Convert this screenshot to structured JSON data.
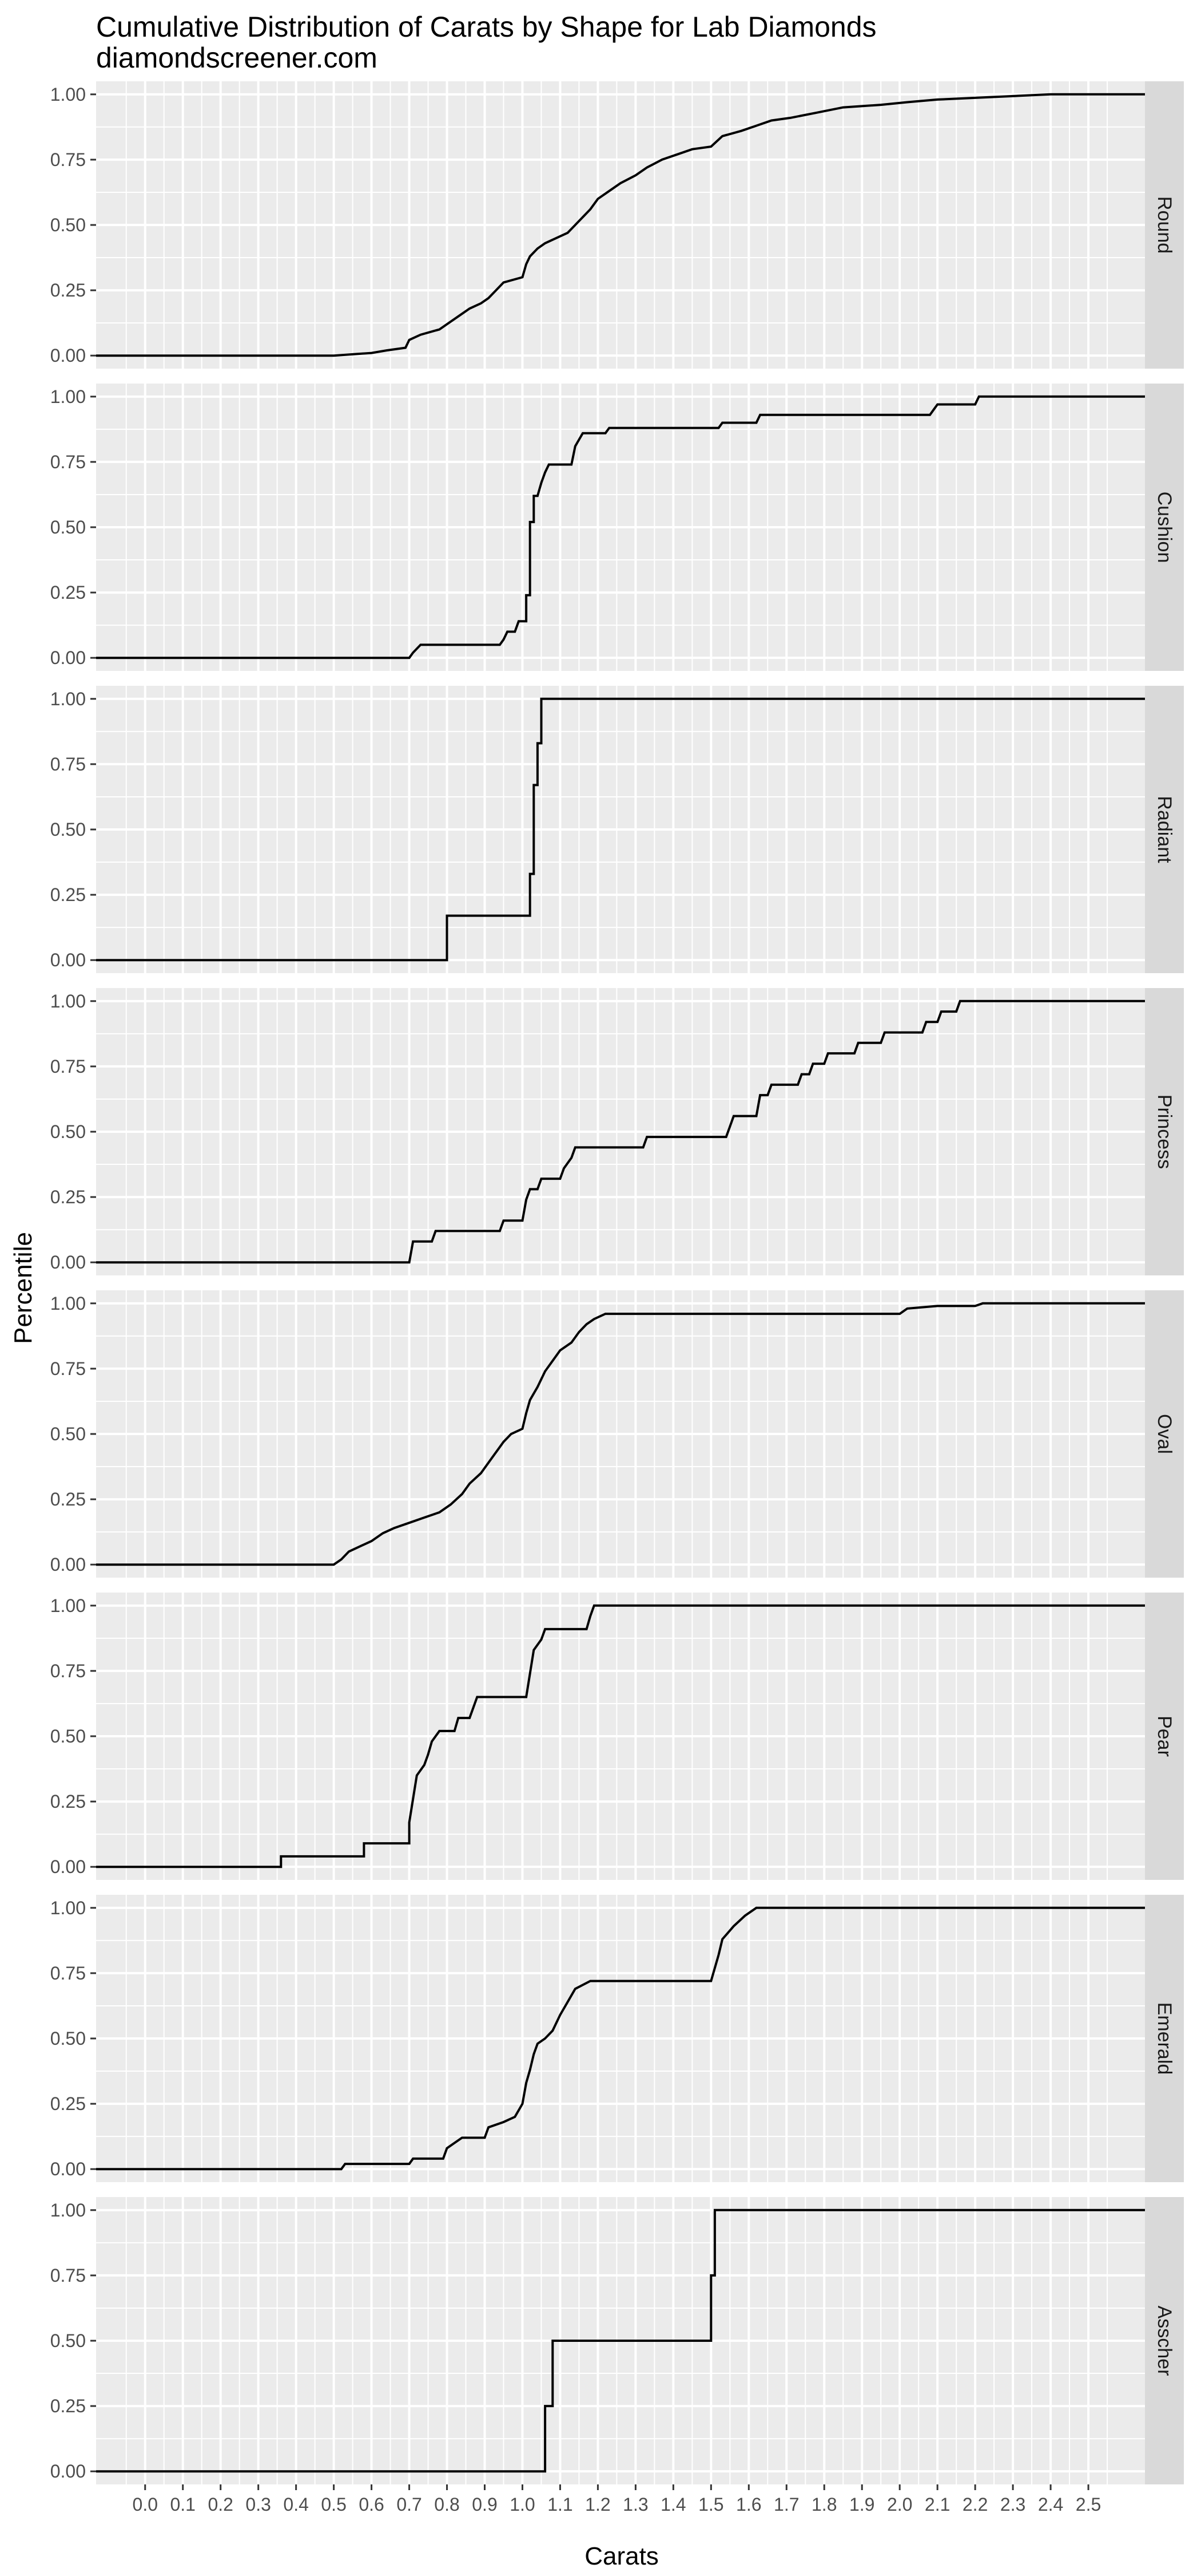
{
  "chart_data": {
    "type": "line",
    "title": "Cumulative Distribution of Carats by Shape for Lab Diamonds",
    "subtitle": "diamondscreener.com",
    "xlabel": "Carats",
    "ylabel": "Percentile",
    "xlim": [
      -0.13,
      2.65
    ],
    "ylim": [
      -0.05,
      1.05
    ],
    "x_ticks": [
      0.0,
      0.1,
      0.2,
      0.3,
      0.4,
      0.5,
      0.6,
      0.7,
      0.8,
      0.9,
      1.0,
      1.1,
      1.2,
      1.3,
      1.4,
      1.5,
      1.6,
      1.7,
      1.8,
      1.9,
      2.0,
      2.1,
      2.2,
      2.3,
      2.4,
      2.5
    ],
    "x_tick_labels": [
      "0.0",
      "0.1",
      "0.2",
      "0.3",
      "0.4",
      "0.5",
      "0.6",
      "0.7",
      "0.8",
      "0.9",
      "1.0",
      "1.1",
      "1.2",
      "1.3",
      "1.4",
      "1.5",
      "1.6",
      "1.7",
      "1.8",
      "1.9",
      "2.0",
      "2.1",
      "2.2",
      "2.3",
      "2.4",
      "2.5"
    ],
    "y_ticks": [
      0.0,
      0.25,
      0.5,
      0.75,
      1.0
    ],
    "y_tick_labels": [
      "0.00",
      "0.25",
      "0.50",
      "0.75",
      "1.00"
    ],
    "grid": true,
    "facet": "rows",
    "series": [
      {
        "name": "Round",
        "points": [
          [
            -0.13,
            0
          ],
          [
            0.5,
            0
          ],
          [
            0.55,
            0.005
          ],
          [
            0.6,
            0.01
          ],
          [
            0.64,
            0.02
          ],
          [
            0.69,
            0.03
          ],
          [
            0.7,
            0.06
          ],
          [
            0.73,
            0.08
          ],
          [
            0.78,
            0.1
          ],
          [
            0.8,
            0.12
          ],
          [
            0.83,
            0.15
          ],
          [
            0.86,
            0.18
          ],
          [
            0.89,
            0.2
          ],
          [
            0.91,
            0.22
          ],
          [
            0.93,
            0.25
          ],
          [
            0.95,
            0.28
          ],
          [
            1.0,
            0.3
          ],
          [
            1.01,
            0.35
          ],
          [
            1.02,
            0.38
          ],
          [
            1.04,
            0.41
          ],
          [
            1.06,
            0.43
          ],
          [
            1.09,
            0.45
          ],
          [
            1.12,
            0.47
          ],
          [
            1.14,
            0.5
          ],
          [
            1.16,
            0.53
          ],
          [
            1.18,
            0.56
          ],
          [
            1.2,
            0.6
          ],
          [
            1.23,
            0.63
          ],
          [
            1.26,
            0.66
          ],
          [
            1.3,
            0.69
          ],
          [
            1.33,
            0.72
          ],
          [
            1.37,
            0.75
          ],
          [
            1.41,
            0.77
          ],
          [
            1.45,
            0.79
          ],
          [
            1.5,
            0.8
          ],
          [
            1.53,
            0.84
          ],
          [
            1.58,
            0.86
          ],
          [
            1.62,
            0.88
          ],
          [
            1.66,
            0.9
          ],
          [
            1.71,
            0.91
          ],
          [
            1.78,
            0.93
          ],
          [
            1.85,
            0.95
          ],
          [
            1.95,
            0.96
          ],
          [
            2.02,
            0.97
          ],
          [
            2.1,
            0.98
          ],
          [
            2.25,
            0.99
          ],
          [
            2.4,
            1.0
          ],
          [
            2.65,
            1.0
          ]
        ]
      },
      {
        "name": "Cushion",
        "points": [
          [
            -0.13,
            0
          ],
          [
            0.7,
            0
          ],
          [
            0.71,
            0.02
          ],
          [
            0.73,
            0.05
          ],
          [
            0.94,
            0.05
          ],
          [
            0.95,
            0.07
          ],
          [
            0.96,
            0.1
          ],
          [
            0.98,
            0.1
          ],
          [
            0.99,
            0.14
          ],
          [
            1.01,
            0.14
          ],
          [
            1.01,
            0.24
          ],
          [
            1.02,
            0.24
          ],
          [
            1.02,
            0.52
          ],
          [
            1.03,
            0.52
          ],
          [
            1.03,
            0.62
          ],
          [
            1.04,
            0.62
          ],
          [
            1.05,
            0.67
          ],
          [
            1.06,
            0.71
          ],
          [
            1.07,
            0.74
          ],
          [
            1.13,
            0.74
          ],
          [
            1.14,
            0.81
          ],
          [
            1.16,
            0.86
          ],
          [
            1.22,
            0.86
          ],
          [
            1.23,
            0.88
          ],
          [
            1.52,
            0.88
          ],
          [
            1.53,
            0.9
          ],
          [
            1.62,
            0.9
          ],
          [
            1.63,
            0.93
          ],
          [
            2.08,
            0.93
          ],
          [
            2.09,
            0.95
          ],
          [
            2.1,
            0.97
          ],
          [
            2.2,
            0.97
          ],
          [
            2.21,
            1.0
          ],
          [
            2.65,
            1.0
          ]
        ]
      },
      {
        "name": "Radiant",
        "points": [
          [
            -0.13,
            0
          ],
          [
            0.8,
            0
          ],
          [
            0.8,
            0.17
          ],
          [
            1.02,
            0.17
          ],
          [
            1.02,
            0.33
          ],
          [
            1.03,
            0.33
          ],
          [
            1.03,
            0.67
          ],
          [
            1.04,
            0.67
          ],
          [
            1.04,
            0.83
          ],
          [
            1.05,
            0.83
          ],
          [
            1.05,
            1.0
          ],
          [
            2.65,
            1.0
          ]
        ]
      },
      {
        "name": "Princess",
        "points": [
          [
            -0.13,
            0
          ],
          [
            0.7,
            0
          ],
          [
            0.71,
            0.08
          ],
          [
            0.76,
            0.08
          ],
          [
            0.77,
            0.12
          ],
          [
            0.94,
            0.12
          ],
          [
            0.95,
            0.16
          ],
          [
            1.0,
            0.16
          ],
          [
            1.01,
            0.24
          ],
          [
            1.02,
            0.28
          ],
          [
            1.04,
            0.28
          ],
          [
            1.05,
            0.32
          ],
          [
            1.1,
            0.32
          ],
          [
            1.11,
            0.36
          ],
          [
            1.13,
            0.4
          ],
          [
            1.14,
            0.44
          ],
          [
            1.32,
            0.44
          ],
          [
            1.33,
            0.48
          ],
          [
            1.54,
            0.48
          ],
          [
            1.55,
            0.52
          ],
          [
            1.56,
            0.56
          ],
          [
            1.62,
            0.56
          ],
          [
            1.63,
            0.64
          ],
          [
            1.65,
            0.64
          ],
          [
            1.66,
            0.68
          ],
          [
            1.73,
            0.68
          ],
          [
            1.74,
            0.72
          ],
          [
            1.76,
            0.72
          ],
          [
            1.77,
            0.76
          ],
          [
            1.8,
            0.76
          ],
          [
            1.81,
            0.8
          ],
          [
            1.88,
            0.8
          ],
          [
            1.89,
            0.84
          ],
          [
            1.95,
            0.84
          ],
          [
            1.96,
            0.88
          ],
          [
            2.06,
            0.88
          ],
          [
            2.07,
            0.92
          ],
          [
            2.1,
            0.92
          ],
          [
            2.11,
            0.96
          ],
          [
            2.15,
            0.96
          ],
          [
            2.16,
            1.0
          ],
          [
            2.65,
            1.0
          ]
        ]
      },
      {
        "name": "Oval",
        "points": [
          [
            -0.13,
            0
          ],
          [
            0.5,
            0
          ],
          [
            0.52,
            0.02
          ],
          [
            0.54,
            0.05
          ],
          [
            0.57,
            0.07
          ],
          [
            0.6,
            0.09
          ],
          [
            0.63,
            0.12
          ],
          [
            0.66,
            0.14
          ],
          [
            0.7,
            0.16
          ],
          [
            0.74,
            0.18
          ],
          [
            0.78,
            0.2
          ],
          [
            0.81,
            0.23
          ],
          [
            0.84,
            0.27
          ],
          [
            0.86,
            0.31
          ],
          [
            0.89,
            0.35
          ],
          [
            0.91,
            0.39
          ],
          [
            0.93,
            0.43
          ],
          [
            0.95,
            0.47
          ],
          [
            0.97,
            0.5
          ],
          [
            1.0,
            0.52
          ],
          [
            1.01,
            0.58
          ],
          [
            1.02,
            0.63
          ],
          [
            1.04,
            0.68
          ],
          [
            1.06,
            0.74
          ],
          [
            1.08,
            0.78
          ],
          [
            1.1,
            0.82
          ],
          [
            1.13,
            0.85
          ],
          [
            1.15,
            0.89
          ],
          [
            1.17,
            0.92
          ],
          [
            1.19,
            0.94
          ],
          [
            1.22,
            0.96
          ],
          [
            2.0,
            0.96
          ],
          [
            2.02,
            0.98
          ],
          [
            2.1,
            0.99
          ],
          [
            2.2,
            0.99
          ],
          [
            2.22,
            1.0
          ],
          [
            2.65,
            1.0
          ]
        ]
      },
      {
        "name": "Pear",
        "points": [
          [
            -0.13,
            0
          ],
          [
            0.36,
            0
          ],
          [
            0.36,
            0.04
          ],
          [
            0.58,
            0.04
          ],
          [
            0.58,
            0.09
          ],
          [
            0.7,
            0.09
          ],
          [
            0.7,
            0.17
          ],
          [
            0.71,
            0.26
          ],
          [
            0.72,
            0.35
          ],
          [
            0.74,
            0.39
          ],
          [
            0.75,
            0.43
          ],
          [
            0.76,
            0.48
          ],
          [
            0.78,
            0.52
          ],
          [
            0.82,
            0.52
          ],
          [
            0.83,
            0.57
          ],
          [
            0.86,
            0.57
          ],
          [
            0.87,
            0.61
          ],
          [
            0.88,
            0.65
          ],
          [
            1.01,
            0.65
          ],
          [
            1.02,
            0.74
          ],
          [
            1.03,
            0.83
          ],
          [
            1.05,
            0.87
          ],
          [
            1.06,
            0.91
          ],
          [
            1.17,
            0.91
          ],
          [
            1.18,
            0.96
          ],
          [
            1.19,
            1.0
          ],
          [
            2.65,
            1.0
          ]
        ]
      },
      {
        "name": "Emerald",
        "points": [
          [
            -0.13,
            0
          ],
          [
            0.52,
            0
          ],
          [
            0.53,
            0.02
          ],
          [
            0.7,
            0.02
          ],
          [
            0.71,
            0.04
          ],
          [
            0.79,
            0.04
          ],
          [
            0.8,
            0.08
          ],
          [
            0.82,
            0.1
          ],
          [
            0.84,
            0.12
          ],
          [
            0.9,
            0.12
          ],
          [
            0.91,
            0.16
          ],
          [
            0.95,
            0.18
          ],
          [
            0.98,
            0.2
          ],
          [
            1.0,
            0.25
          ],
          [
            1.01,
            0.33
          ],
          [
            1.02,
            0.38
          ],
          [
            1.03,
            0.44
          ],
          [
            1.04,
            0.48
          ],
          [
            1.06,
            0.5
          ],
          [
            1.08,
            0.53
          ],
          [
            1.1,
            0.59
          ],
          [
            1.12,
            0.64
          ],
          [
            1.14,
            0.69
          ],
          [
            1.18,
            0.72
          ],
          [
            1.5,
            0.72
          ],
          [
            1.51,
            0.77
          ],
          [
            1.52,
            0.82
          ],
          [
            1.53,
            0.88
          ],
          [
            1.56,
            0.93
          ],
          [
            1.59,
            0.97
          ],
          [
            1.62,
            1.0
          ],
          [
            2.65,
            1.0
          ]
        ]
      },
      {
        "name": "Asscher",
        "points": [
          [
            -0.13,
            0
          ],
          [
            1.06,
            0
          ],
          [
            1.06,
            0.25
          ],
          [
            1.08,
            0.25
          ],
          [
            1.08,
            0.5
          ],
          [
            1.5,
            0.5
          ],
          [
            1.5,
            0.75
          ],
          [
            1.51,
            0.75
          ],
          [
            1.51,
            1.0
          ],
          [
            2.65,
            1.0
          ]
        ]
      }
    ]
  }
}
